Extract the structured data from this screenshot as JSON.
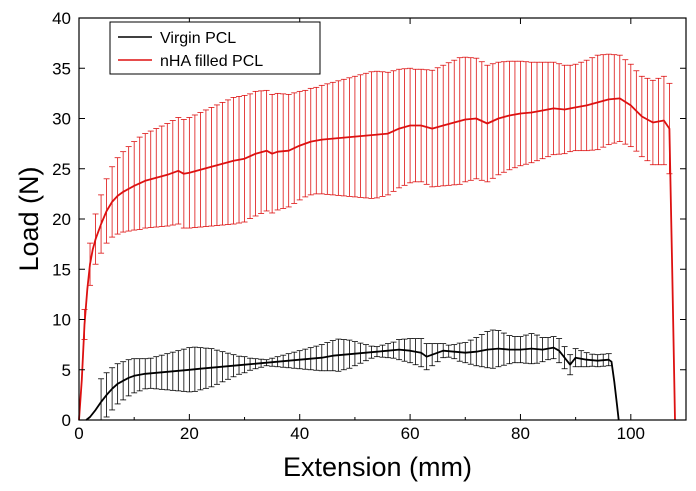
{
  "chart_data": {
    "type": "line",
    "title": "",
    "xlabel": "Extension (mm)",
    "ylabel": "Load (N)",
    "xlim": [
      0,
      110
    ],
    "ylim": [
      0,
      40
    ],
    "xticks": [
      0,
      20,
      40,
      60,
      80,
      100
    ],
    "yticks": [
      0,
      5,
      10,
      15,
      20,
      25,
      30,
      35,
      40
    ],
    "legend_position": "top-left",
    "grid": false,
    "series": [
      {
        "name": "Virgin PCL",
        "color": "#000000",
        "x": [
          1.3,
          2,
          3,
          4,
          5,
          6,
          7,
          8,
          9,
          10,
          12,
          14,
          16,
          18,
          20,
          22,
          24,
          26,
          28,
          30,
          32,
          34,
          36,
          38,
          40,
          42,
          44,
          46,
          48,
          50,
          52,
          54,
          56,
          58,
          60,
          62,
          63,
          64,
          66,
          68,
          70,
          72,
          74,
          76,
          78,
          80,
          82,
          84,
          86,
          87,
          88,
          89,
          90,
          92,
          94,
          96,
          96.5,
          97,
          97.5,
          97.8
        ],
        "y": [
          0,
          0.3,
          1,
          1.8,
          2.5,
          3.1,
          3.6,
          3.9,
          4.2,
          4.4,
          4.6,
          4.7,
          4.8,
          4.9,
          5,
          5.1,
          5.2,
          5.3,
          5.4,
          5.5,
          5.6,
          5.7,
          5.8,
          5.9,
          6,
          6.1,
          6.2,
          6.4,
          6.5,
          6.6,
          6.7,
          6.8,
          6.9,
          7,
          6.9,
          6.7,
          6.3,
          6.5,
          6.9,
          6.8,
          6.7,
          6.8,
          7,
          7.1,
          7,
          7,
          7.1,
          7,
          7.2,
          6.9,
          6.2,
          5.5,
          6.2,
          6,
          5.9,
          6,
          5.8,
          3.8,
          1.5,
          0
        ]
      },
      {
        "name": "nHA filled PCL",
        "color": "#dd1111",
        "x": [
          0,
          0.5,
          1,
          1.5,
          2,
          2.5,
          3,
          4,
          5,
          6,
          7,
          8,
          10,
          12,
          14,
          16,
          18,
          19,
          20,
          22,
          24,
          26,
          28,
          30,
          32,
          34,
          35,
          36,
          38,
          40,
          42,
          44,
          46,
          48,
          50,
          52,
          54,
          56,
          58,
          60,
          62,
          64,
          66,
          68,
          70,
          72,
          74,
          76,
          78,
          80,
          82,
          84,
          86,
          88,
          90,
          92,
          94,
          96,
          98,
          100,
          102,
          104,
          106,
          107,
          107.5,
          108
        ],
        "y": [
          0,
          4,
          9.5,
          13,
          15.5,
          17,
          18,
          19.5,
          20.8,
          21.7,
          22.3,
          22.7,
          23.3,
          23.8,
          24.1,
          24.4,
          24.8,
          24.5,
          24.6,
          24.9,
          25.2,
          25.5,
          25.8,
          26,
          26.5,
          26.8,
          26.5,
          26.7,
          26.8,
          27.3,
          27.7,
          27.9,
          28,
          28.1,
          28.2,
          28.3,
          28.4,
          28.5,
          29,
          29.3,
          29.3,
          29,
          29.3,
          29.6,
          29.9,
          30,
          29.5,
          30,
          30.3,
          30.5,
          30.6,
          30.8,
          31,
          30.9,
          31.1,
          31.3,
          31.6,
          31.9,
          32,
          31.3,
          30.2,
          29.6,
          29.8,
          29,
          15,
          0
        ]
      }
    ],
    "error_bars": [
      {
        "series": "Virgin PCL",
        "x": [
          4,
          5,
          6,
          7,
          8,
          9,
          10,
          11,
          12,
          13,
          14,
          15,
          16,
          17,
          18,
          19,
          20,
          21,
          22,
          23,
          24,
          25,
          26,
          27,
          28,
          29,
          30,
          31,
          32,
          33,
          34,
          35,
          36,
          37,
          38,
          39,
          40,
          41,
          42,
          43,
          44,
          45,
          46,
          47,
          48,
          49,
          50,
          51,
          52,
          53,
          54,
          55,
          56,
          57,
          58,
          59,
          60,
          61,
          62,
          63,
          64,
          65,
          66,
          67,
          68,
          69,
          70,
          71,
          72,
          73,
          74,
          75,
          76,
          77,
          78,
          79,
          80,
          81,
          82,
          83,
          84,
          85,
          86,
          87,
          88,
          89,
          90,
          91,
          92,
          93,
          94,
          95,
          96
        ],
        "err": [
          2.3,
          2.2,
          2.1,
          2,
          1.9,
          1.8,
          1.7,
          1.6,
          1.5,
          1.5,
          1.6,
          1.7,
          1.8,
          1.9,
          2,
          2.1,
          2.2,
          2.2,
          2.1,
          2,
          1.9,
          1.7,
          1.5,
          1.3,
          1.1,
          0.9,
          0.8,
          0.6,
          0.5,
          0.4,
          0.3,
          0.4,
          0.5,
          0.6,
          0.7,
          0.8,
          0.9,
          1,
          1.1,
          1.2,
          1.3,
          1.4,
          1.5,
          1.6,
          1.5,
          1.4,
          1.2,
          1,
          0.8,
          0.6,
          0.5,
          0.6,
          0.7,
          0.8,
          1,
          1.1,
          1.2,
          1.3,
          1.4,
          1.3,
          1.1,
          0.9,
          0.7,
          0.6,
          0.7,
          0.9,
          1,
          1.2,
          1.4,
          1.6,
          1.8,
          1.9,
          1.8,
          1.6,
          1.4,
          1.3,
          1.3,
          1.4,
          1.5,
          1.4,
          1.2,
          1.1,
          1.1,
          1.2,
          1.1,
          1,
          0.9,
          0.8,
          0.7,
          0.6,
          0.6,
          0.6,
          0.6
        ]
      },
      {
        "series": "nHA filled PCL",
        "x": [
          1,
          2,
          3,
          4,
          5,
          6,
          7,
          8,
          9,
          10,
          11,
          12,
          13,
          14,
          15,
          16,
          17,
          18,
          19,
          20,
          21,
          22,
          23,
          24,
          25,
          26,
          27,
          28,
          29,
          30,
          31,
          32,
          33,
          34,
          35,
          36,
          37,
          38,
          39,
          40,
          41,
          42,
          43,
          44,
          45,
          46,
          47,
          48,
          49,
          50,
          51,
          52,
          53,
          54,
          55,
          56,
          57,
          58,
          59,
          60,
          61,
          62,
          63,
          64,
          65,
          66,
          67,
          68,
          69,
          70,
          71,
          72,
          73,
          74,
          75,
          76,
          77,
          78,
          79,
          80,
          81,
          82,
          83,
          84,
          85,
          86,
          87,
          88,
          89,
          90,
          91,
          92,
          93,
          94,
          95,
          96,
          97,
          98,
          99,
          100,
          101,
          102,
          103,
          104,
          105,
          106,
          107
        ],
        "err": [
          1.5,
          2.1,
          2.5,
          2.9,
          3.2,
          3.5,
          3.8,
          4,
          4.2,
          4.4,
          4.6,
          4.7,
          4.8,
          4.9,
          5,
          5.1,
          5.2,
          5.3,
          5.4,
          5.5,
          5.6,
          5.7,
          5.8,
          5.9,
          6,
          6.1,
          6.2,
          6.3,
          6.3,
          6.3,
          6.2,
          6.2,
          6.1,
          6,
          5.9,
          5.8,
          5.7,
          5.6,
          5.5,
          5.4,
          5.3,
          5.3,
          5.3,
          5.4,
          5.5,
          5.6,
          5.7,
          5.8,
          5.9,
          6,
          6.1,
          6.2,
          6.3,
          6.3,
          6.2,
          6.1,
          6,
          5.9,
          5.8,
          5.7,
          5.6,
          5.6,
          5.7,
          5.8,
          5.9,
          6,
          6.1,
          6.2,
          6.3,
          6.2,
          6.1,
          6,
          5.9,
          5.8,
          5.7,
          5.6,
          5.5,
          5.4,
          5.3,
          5.2,
          5.1,
          5,
          4.9,
          4.8,
          4.7,
          4.6,
          4.5,
          4.4,
          4.3,
          4.3,
          4.4,
          4.5,
          4.6,
          4.7,
          4.6,
          4.5,
          4.4,
          4.3,
          4.2,
          4.1,
          4,
          4,
          4.1,
          4.2,
          4.3,
          4.4,
          4.5
        ]
      }
    ]
  }
}
